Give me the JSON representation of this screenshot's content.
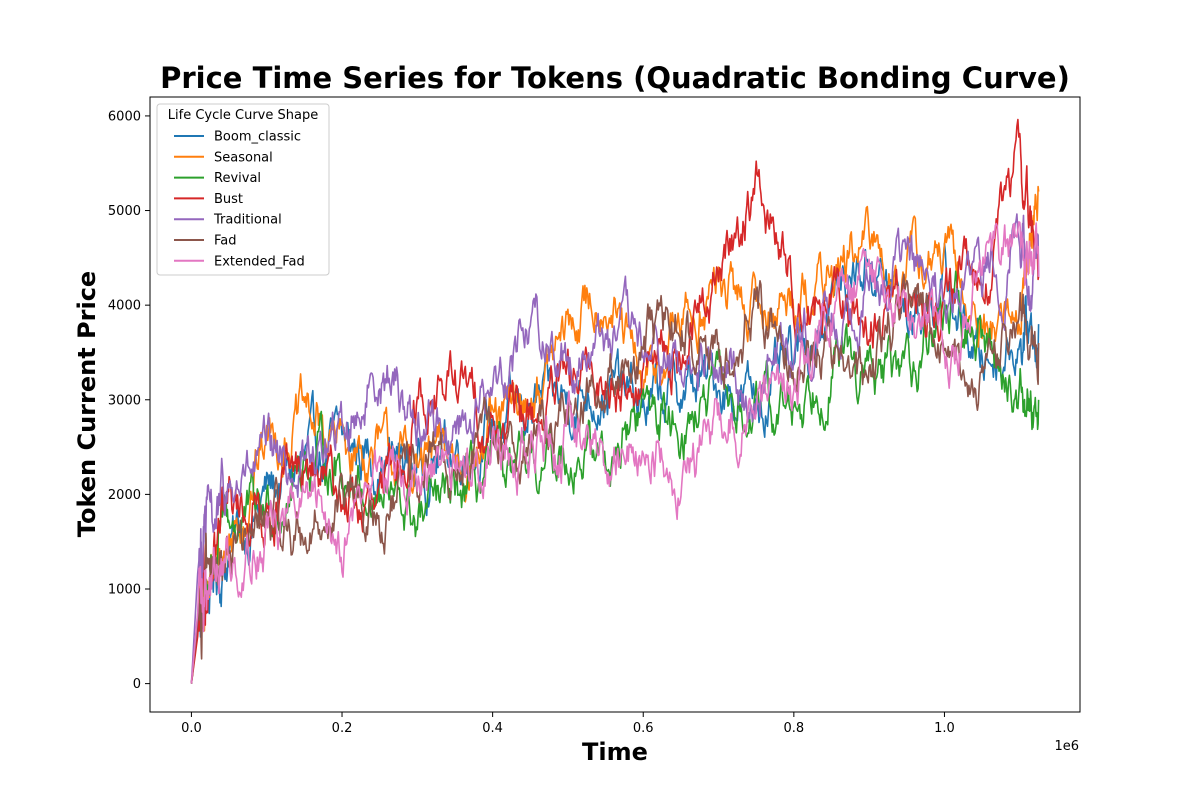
{
  "chart_data": {
    "type": "line",
    "title": "Price Time Series for Tokens (Quadratic Bonding Curve)",
    "xlabel": "Time",
    "ylabel": "Token Current Price",
    "x_offset_text": "1e6",
    "xlim": [
      -0.055,
      1.18
    ],
    "ylim": [
      -300,
      6200
    ],
    "xticks": [
      0.0,
      0.2,
      0.4,
      0.6,
      0.8,
      1.0
    ],
    "xtick_labels": [
      "0.0",
      "0.2",
      "0.4",
      "0.6",
      "0.8",
      "1.0"
    ],
    "yticks": [
      0,
      1000,
      2000,
      3000,
      4000,
      5000,
      6000
    ],
    "ytick_labels": [
      "0",
      "1000",
      "2000",
      "3000",
      "4000",
      "5000",
      "6000"
    ],
    "grid": false,
    "legend": {
      "title": "Life Cycle Curve Shape",
      "placement": "top-left"
    },
    "x": [
      0.0,
      0.01,
      0.02,
      0.05,
      0.1,
      0.15,
      0.2,
      0.25,
      0.3,
      0.35,
      0.4,
      0.45,
      0.5,
      0.55,
      0.6,
      0.65,
      0.7,
      0.75,
      0.8,
      0.85,
      0.9,
      0.95,
      1.0,
      1.05,
      1.1,
      1.125
    ],
    "series": [
      {
        "name": "Boom_classic",
        "color": "#1f77b4",
        "values": [
          0,
          700,
          950,
          1400,
          2000,
          2300,
          2500,
          2400,
          2300,
          2500,
          2700,
          2900,
          3000,
          3200,
          2900,
          3100,
          3200,
          3000,
          3300,
          4100,
          4500,
          3900,
          4200,
          3400,
          3700,
          3800
        ]
      },
      {
        "name": "Seasonal",
        "color": "#ff7f0e",
        "values": [
          0,
          800,
          1000,
          1500,
          2600,
          2800,
          2500,
          2400,
          2300,
          2400,
          2600,
          3000,
          3700,
          4200,
          3000,
          3800,
          4200,
          3900,
          4100,
          4300,
          4600,
          4400,
          4500,
          3700,
          4000,
          5200
        ]
      },
      {
        "name": "Revival",
        "color": "#2ca02c",
        "values": [
          0,
          700,
          1100,
          1700,
          1800,
          2400,
          2300,
          2000,
          1700,
          1900,
          2200,
          2100,
          2500,
          2400,
          2900,
          2800,
          3000,
          2800,
          2900,
          3500,
          3200,
          3300,
          4000,
          3600,
          3100,
          3000
        ]
      },
      {
        "name": "Bust",
        "color": "#d62728",
        "values": [
          0,
          600,
          1000,
          1800,
          1900,
          2200,
          2000,
          1700,
          3000,
          3200,
          2700,
          2800,
          3100,
          3200,
          3300,
          3500,
          4300,
          5300,
          4200,
          3900,
          3800,
          4000,
          4100,
          4200,
          5600,
          4300
        ]
      },
      {
        "name": "Traditional",
        "color": "#9467bd",
        "values": [
          0,
          1400,
          1600,
          2000,
          2300,
          2300,
          2600,
          3400,
          2800,
          2700,
          3100,
          3900,
          3400,
          3700,
          3500,
          3300,
          3200,
          3100,
          3700,
          3800,
          4200,
          4500,
          3900,
          4300,
          4700,
          4300
        ]
      },
      {
        "name": "Fad",
        "color": "#8c564b",
        "values": [
          0,
          800,
          1000,
          1400,
          1700,
          1600,
          1900,
          1700,
          2200,
          2300,
          2500,
          2600,
          2900,
          3300,
          3500,
          3800,
          3400,
          4000,
          3600,
          3500,
          3100,
          4300,
          3400,
          3100,
          3900,
          3600
        ]
      },
      {
        "name": "Extended_Fad",
        "color": "#e377c2",
        "values": [
          0,
          900,
          1100,
          1300,
          1600,
          1900,
          1600,
          2300,
          2000,
          2200,
          2600,
          2400,
          2600,
          2400,
          2500,
          2300,
          2700,
          2900,
          3200,
          3900,
          4300,
          3800,
          3500,
          4300,
          4600,
          4300
        ]
      }
    ]
  }
}
